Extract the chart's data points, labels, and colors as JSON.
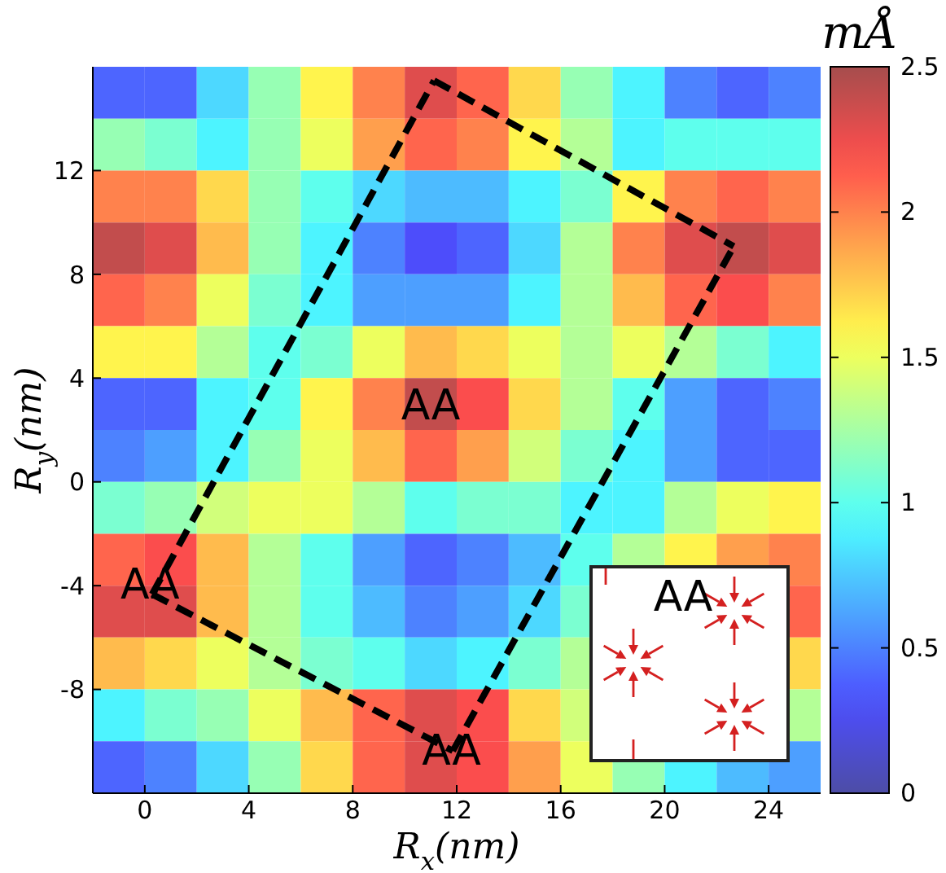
{
  "chart_data": {
    "type": "heatmap",
    "xlabel": "R$_{x}$(nm)",
    "ylabel": "R$_{y}$(nm)",
    "clabel": "mÅ",
    "x": [
      -1,
      1,
      3,
      5,
      7,
      9,
      11,
      13,
      15,
      17,
      19,
      21,
      23,
      25
    ],
    "y": [
      15,
      13,
      11,
      9,
      7,
      5,
      3,
      1,
      -1,
      -3,
      -5,
      -7,
      -9,
      -11
    ],
    "cells": [
      [
        0.4,
        0.4,
        0.8,
        1.2,
        1.6,
        2.0,
        2.3,
        2.1,
        1.7,
        1.2,
        0.9,
        0.5,
        0.4,
        0.5
      ],
      [
        1.2,
        1.1,
        0.9,
        1.2,
        1.5,
        1.9,
        2.1,
        2.0,
        1.6,
        1.3,
        0.9,
        1.0,
        1.0,
        1.0
      ],
      [
        2.0,
        2.0,
        1.7,
        1.2,
        1.0,
        0.8,
        0.7,
        0.7,
        0.9,
        1.1,
        1.6,
        2.0,
        2.1,
        2.0
      ],
      [
        2.4,
        2.3,
        1.8,
        1.2,
        0.9,
        0.5,
        0.3,
        0.4,
        0.8,
        1.3,
        2.0,
        2.3,
        2.4,
        2.3
      ],
      [
        2.1,
        2.0,
        1.5,
        1.1,
        0.9,
        0.6,
        0.6,
        0.6,
        0.9,
        1.3,
        1.8,
        2.1,
        2.2,
        2.0
      ],
      [
        1.6,
        1.6,
        1.3,
        1.0,
        1.1,
        1.5,
        1.8,
        1.7,
        1.5,
        1.3,
        1.5,
        1.3,
        1.1,
        0.9
      ],
      [
        0.4,
        0.4,
        0.9,
        1.0,
        1.6,
        2.0,
        2.4,
        2.2,
        1.7,
        1.3,
        1.0,
        0.6,
        0.4,
        0.5
      ],
      [
        0.5,
        0.6,
        0.9,
        1.2,
        1.5,
        1.8,
        2.1,
        1.9,
        1.4,
        1.1,
        0.9,
        0.6,
        0.4,
        0.4
      ],
      [
        1.1,
        1.2,
        1.4,
        1.5,
        1.5,
        1.3,
        1.0,
        1.1,
        1.1,
        0.9,
        0.9,
        1.3,
        1.5,
        1.6
      ],
      [
        2.1,
        2.2,
        1.8,
        1.3,
        1.0,
        0.6,
        0.4,
        0.5,
        0.7,
        1.0,
        1.3,
        1.6,
        1.9,
        2.0
      ],
      [
        2.3,
        2.3,
        1.8,
        1.3,
        1.0,
        0.7,
        0.5,
        0.6,
        0.8,
        1.1,
        null,
        null,
        null,
        2.1
      ],
      [
        1.8,
        1.7,
        1.5,
        1.3,
        1.1,
        1.0,
        0.8,
        0.9,
        1.1,
        1.3,
        null,
        null,
        null,
        1.7
      ],
      [
        0.9,
        1.1,
        1.2,
        1.5,
        1.8,
        2.1,
        2.3,
        2.2,
        1.7,
        1.4,
        null,
        null,
        null,
        1.3
      ],
      [
        0.4,
        0.5,
        0.8,
        1.2,
        1.7,
        2.1,
        2.3,
        2.2,
        1.9,
        1.5,
        1.2,
        0.9,
        0.7,
        0.6
      ]
    ],
    "clim": [
      0,
      2.5
    ],
    "cticks": [
      0,
      0.5,
      1,
      1.5,
      2,
      2.5
    ],
    "xlim": [
      -2,
      26
    ],
    "xticks": [
      0,
      4,
      8,
      12,
      16,
      20,
      24
    ],
    "ylim": [
      -12,
      16
    ],
    "yticks": [
      -8,
      -4,
      0,
      4,
      8,
      12
    ],
    "series": [
      {
        "type": "line",
        "x": [
          0.28,
          11.13
        ],
        "values": [
          -4.33,
          15.47
        ],
        "color": "#000000",
        "line_style": "dashed"
      },
      {
        "type": "line",
        "x": [
          11.13,
          22.66
        ],
        "values": [
          15.47,
          9.08
        ],
        "color": "#000000",
        "line_style": "dashed"
      },
      {
        "type": "line",
        "x": [
          11.85,
          22.66
        ],
        "values": [
          -10.37,
          9.08
        ],
        "color": "#000000",
        "line_style": "dashed"
      },
      {
        "type": "line",
        "x": [
          0.28,
          11.85
        ],
        "values": [
          -4.33,
          -10.37
        ],
        "color": "#000000",
        "line_style": "dashed"
      }
    ],
    "annotations": [
      "AA",
      "AA",
      "AA",
      "AA"
    ]
  }
}
